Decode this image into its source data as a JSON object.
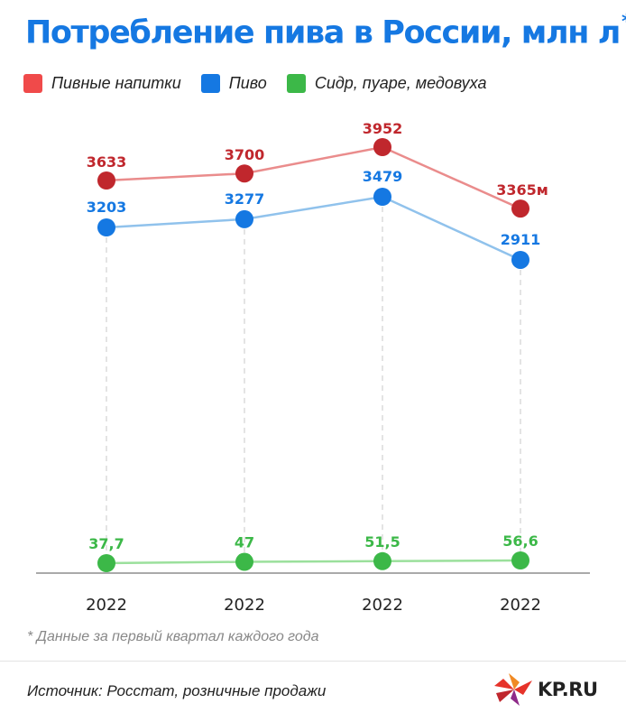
{
  "title": "Потребление пива в России, млн л",
  "title_mark": "*",
  "footnote": "* Данные за первый квартал каждого года",
  "source": "Источник: Росстат, розничные продажи",
  "logo": {
    "text": "KP.RU",
    "icon": "kp-star-logo-icon"
  },
  "colors": {
    "title": "#1578e2",
    "red": "#c0272d",
    "red_line": "#ea8c8c",
    "blue": "#1578e2",
    "blue_line": "#90c2ec",
    "green": "#3cb848",
    "green_line": "#9be09c",
    "legend_red": "#f04a4a",
    "legend_blue": "#1578e2",
    "legend_green": "#3cb848"
  },
  "chart_data": {
    "type": "line",
    "categories": [
      "2022",
      "2022",
      "2022",
      "2022"
    ],
    "legend_position": "top-left",
    "grid": false,
    "series": [
      {
        "name": "Пивные напитки",
        "values": [
          3633,
          3700,
          3952,
          3365
        ],
        "labels": [
          "3633",
          "3700",
          "3952",
          "3365м"
        ]
      },
      {
        "name": "Пиво",
        "values": [
          3203,
          3277,
          3479,
          2911
        ],
        "labels": [
          "3203",
          "3277",
          "3479",
          "2911"
        ]
      },
      {
        "name": "Сидр, пуаре, медовуха",
        "values": [
          37.7,
          47,
          51.5,
          56.6
        ],
        "labels": [
          "37,7",
          "47",
          "51,5",
          "56,6"
        ]
      }
    ]
  }
}
